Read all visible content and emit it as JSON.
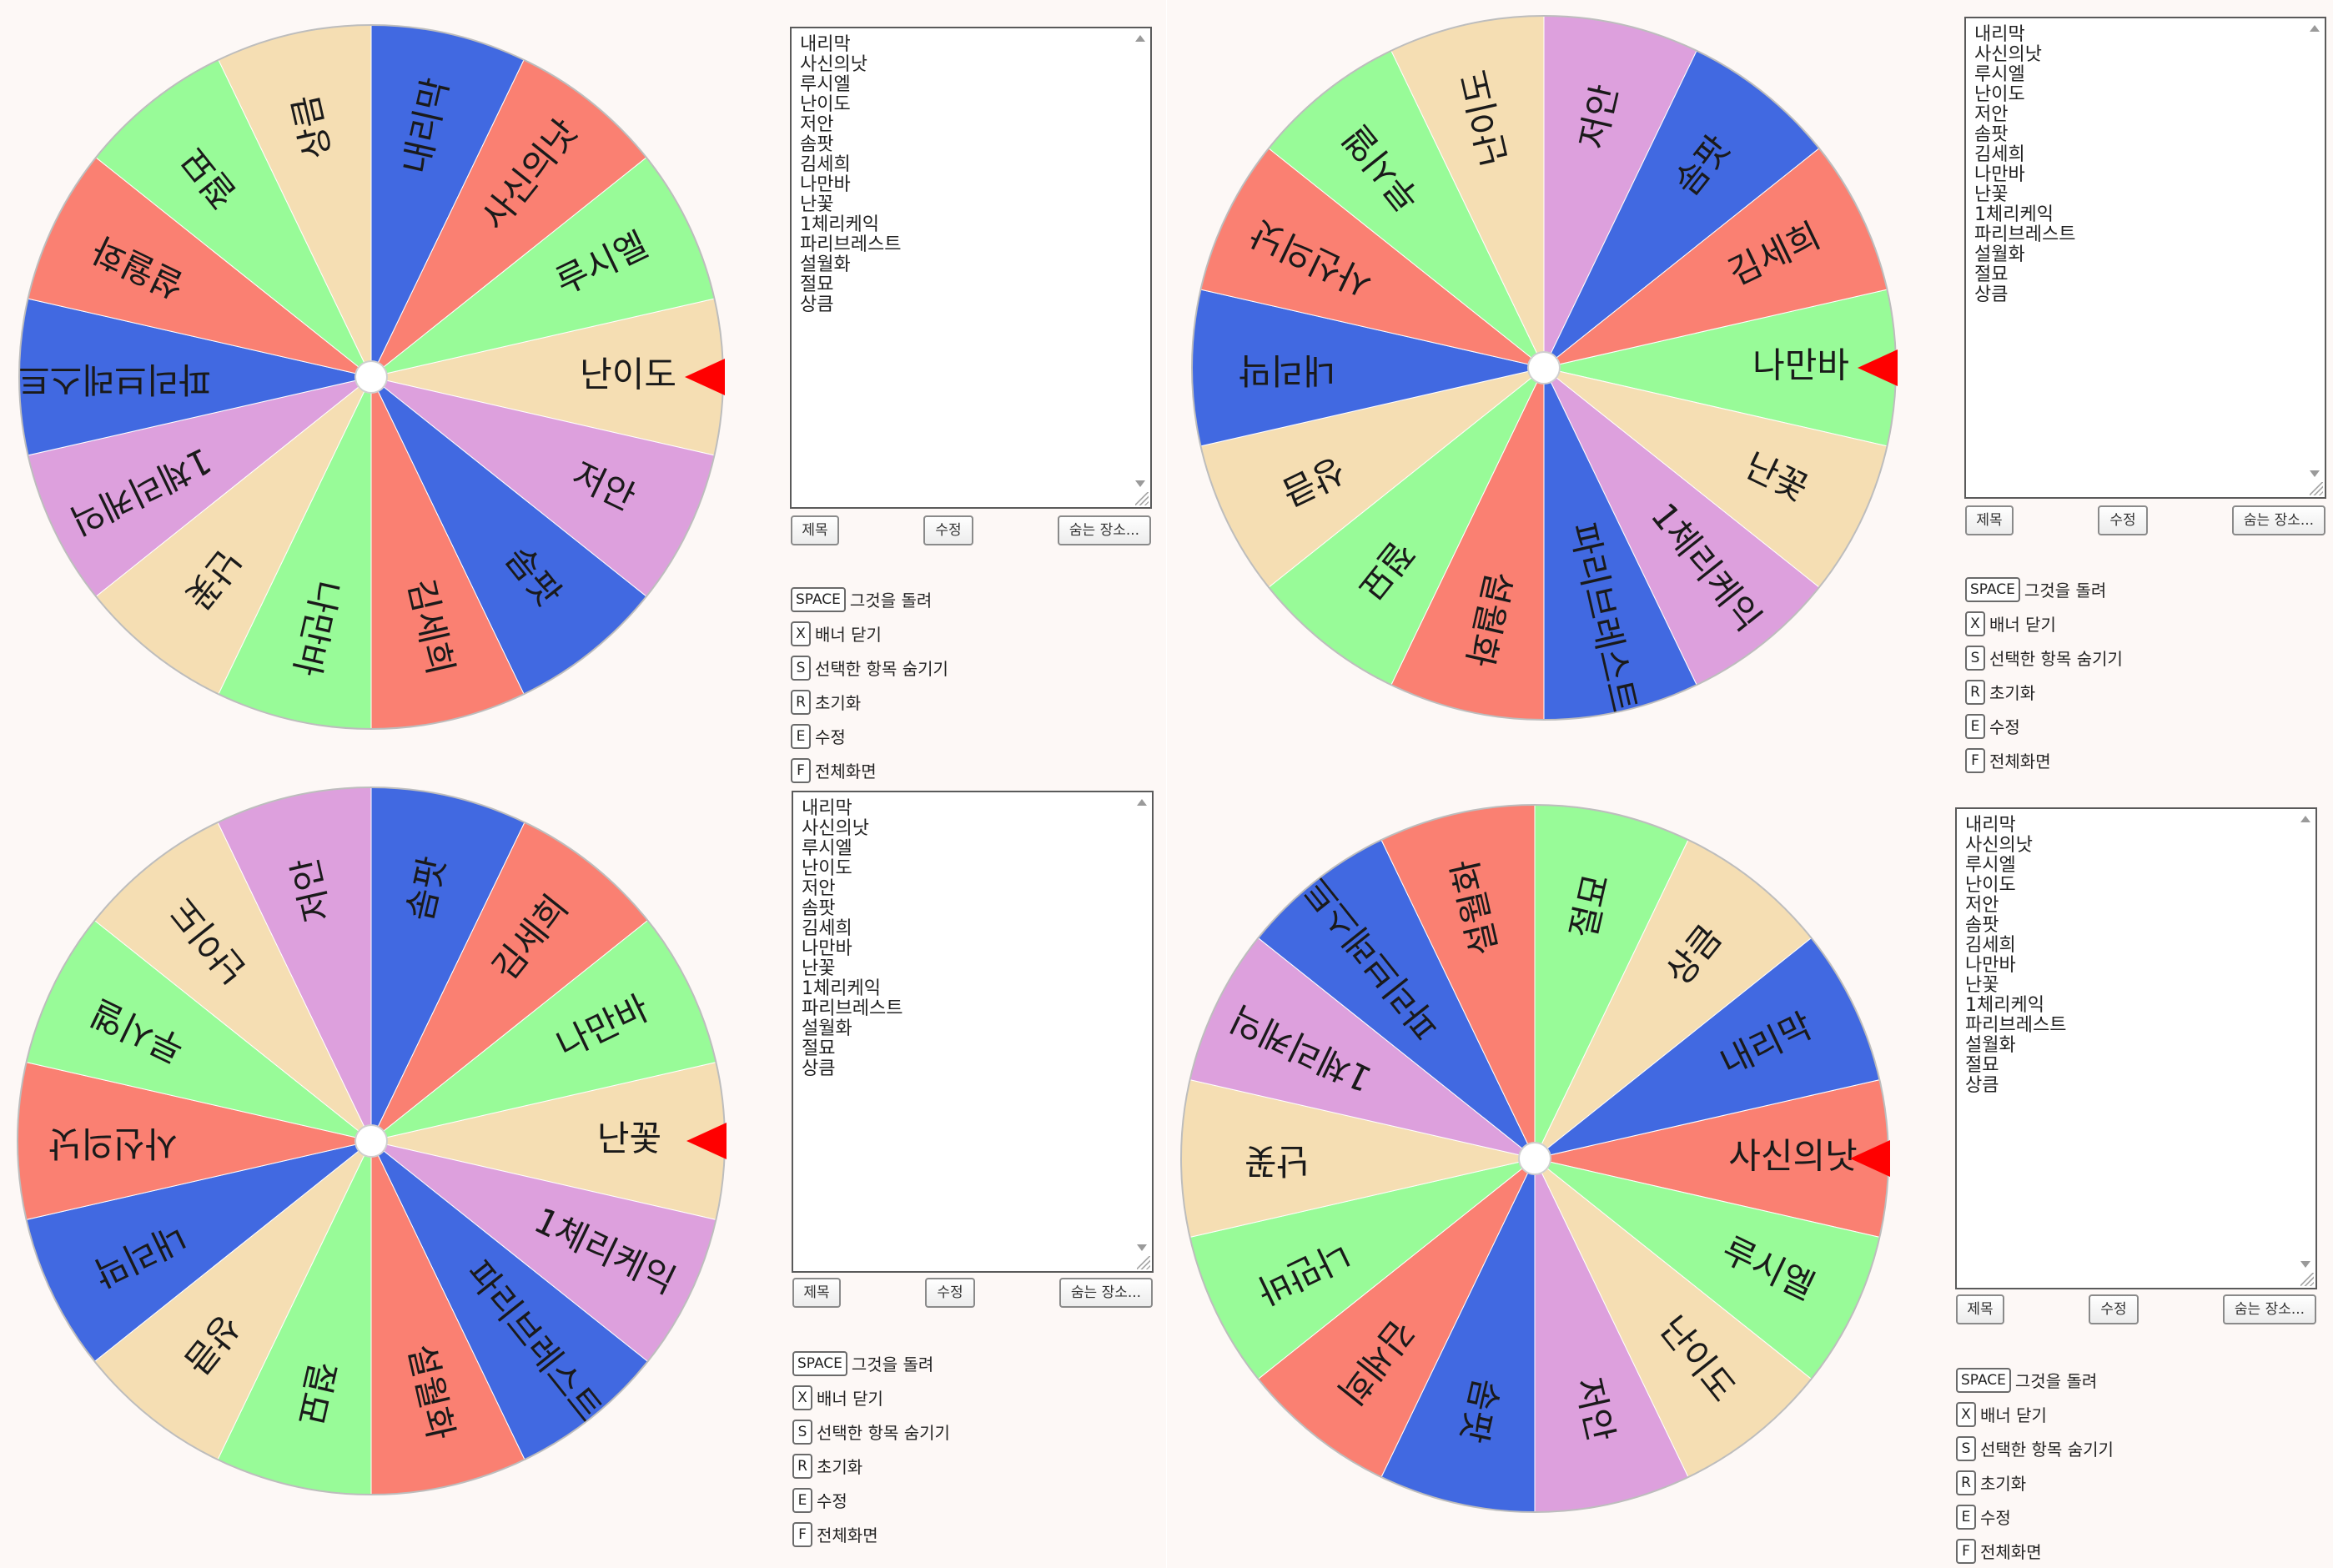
{
  "entries_text": "내리막\n사신의낫\n루시엘\n난이도\n저안\n솜팟\n김세희\n나만바\n난꽃\n1체리케익\n파리브레스트\n설월화\n절묘\n상큼",
  "buttons": {
    "title": "제목",
    "edit": "수정",
    "hidden": "숨는 장소..."
  },
  "shortcuts": [
    {
      "key": "SPACE",
      "desc": "그것을 돌려"
    },
    {
      "key": "X",
      "desc": "배너 닫기"
    },
    {
      "key": "S",
      "desc": "선택한 항목 숨기기"
    },
    {
      "key": "R",
      "desc": "초기화"
    },
    {
      "key": "E",
      "desc": "수정"
    },
    {
      "key": "F",
      "desc": "전체화면"
    }
  ],
  "colors": {
    "blue": "#4169e1",
    "salmon": "#fa8072",
    "green": "#98fb98",
    "wheat": "#f5deb3",
    "plum": "#dda0dd",
    "pointer": "#ff0000"
  },
  "wheels": [
    {
      "pointer_label": "난이도",
      "slices": [
        {
          "label": "난이도",
          "color": "wheat"
        },
        {
          "label": "저안",
          "color": "plum"
        },
        {
          "label": "솜팟",
          "color": "blue"
        },
        {
          "label": "김세희",
          "color": "salmon"
        },
        {
          "label": "나만바",
          "color": "green"
        },
        {
          "label": "난꽃",
          "color": "wheat"
        },
        {
          "label": "1체리케익",
          "color": "plum"
        },
        {
          "label": "파리브레스트",
          "color": "blue"
        },
        {
          "label": "설월화",
          "color": "salmon"
        },
        {
          "label": "절묘",
          "color": "green"
        },
        {
          "label": "상큼",
          "color": "wheat"
        },
        {
          "label": "내리막",
          "color": "blue"
        },
        {
          "label": "사신의낫",
          "color": "salmon"
        },
        {
          "label": "루시엘",
          "color": "green"
        }
      ]
    },
    {
      "pointer_label": "나만바",
      "slices": [
        {
          "label": "나만바",
          "color": "green"
        },
        {
          "label": "난꽃",
          "color": "wheat"
        },
        {
          "label": "1체리케익",
          "color": "plum"
        },
        {
          "label": "파리브레스트",
          "color": "blue"
        },
        {
          "label": "설월화",
          "color": "salmon"
        },
        {
          "label": "절묘",
          "color": "green"
        },
        {
          "label": "상큼",
          "color": "wheat"
        },
        {
          "label": "내리막",
          "color": "blue"
        },
        {
          "label": "사신의낫",
          "color": "salmon"
        },
        {
          "label": "루시엘",
          "color": "green"
        },
        {
          "label": "난이도",
          "color": "wheat"
        },
        {
          "label": "저안",
          "color": "plum"
        },
        {
          "label": "솜팟",
          "color": "blue"
        },
        {
          "label": "김세희",
          "color": "salmon"
        }
      ]
    },
    {
      "pointer_label": "난꽃",
      "slices": [
        {
          "label": "난꽃",
          "color": "wheat"
        },
        {
          "label": "1체리케익",
          "color": "plum"
        },
        {
          "label": "파리브레스트",
          "color": "blue"
        },
        {
          "label": "설월화",
          "color": "salmon"
        },
        {
          "label": "절묘",
          "color": "green"
        },
        {
          "label": "상큼",
          "color": "wheat"
        },
        {
          "label": "내리막",
          "color": "blue"
        },
        {
          "label": "사신의낫",
          "color": "salmon"
        },
        {
          "label": "루시엘",
          "color": "green"
        },
        {
          "label": "난이도",
          "color": "wheat"
        },
        {
          "label": "저안",
          "color": "plum"
        },
        {
          "label": "솜팟",
          "color": "blue"
        },
        {
          "label": "김세희",
          "color": "salmon"
        },
        {
          "label": "나만바",
          "color": "green"
        }
      ]
    },
    {
      "pointer_label": "사신의낫",
      "slices": [
        {
          "label": "사신의낫",
          "color": "salmon"
        },
        {
          "label": "루시엘",
          "color": "green"
        },
        {
          "label": "난이도",
          "color": "wheat"
        },
        {
          "label": "저안",
          "color": "plum"
        },
        {
          "label": "솜팟",
          "color": "blue"
        },
        {
          "label": "김세희",
          "color": "salmon"
        },
        {
          "label": "나만바",
          "color": "green"
        },
        {
          "label": "난꽃",
          "color": "wheat"
        },
        {
          "label": "1체리케익",
          "color": "plum"
        },
        {
          "label": "파리브레스트",
          "color": "blue"
        },
        {
          "label": "설월화",
          "color": "salmon"
        },
        {
          "label": "절묘",
          "color": "green"
        },
        {
          "label": "상큼",
          "color": "wheat"
        },
        {
          "label": "내리막",
          "color": "blue"
        }
      ]
    }
  ]
}
